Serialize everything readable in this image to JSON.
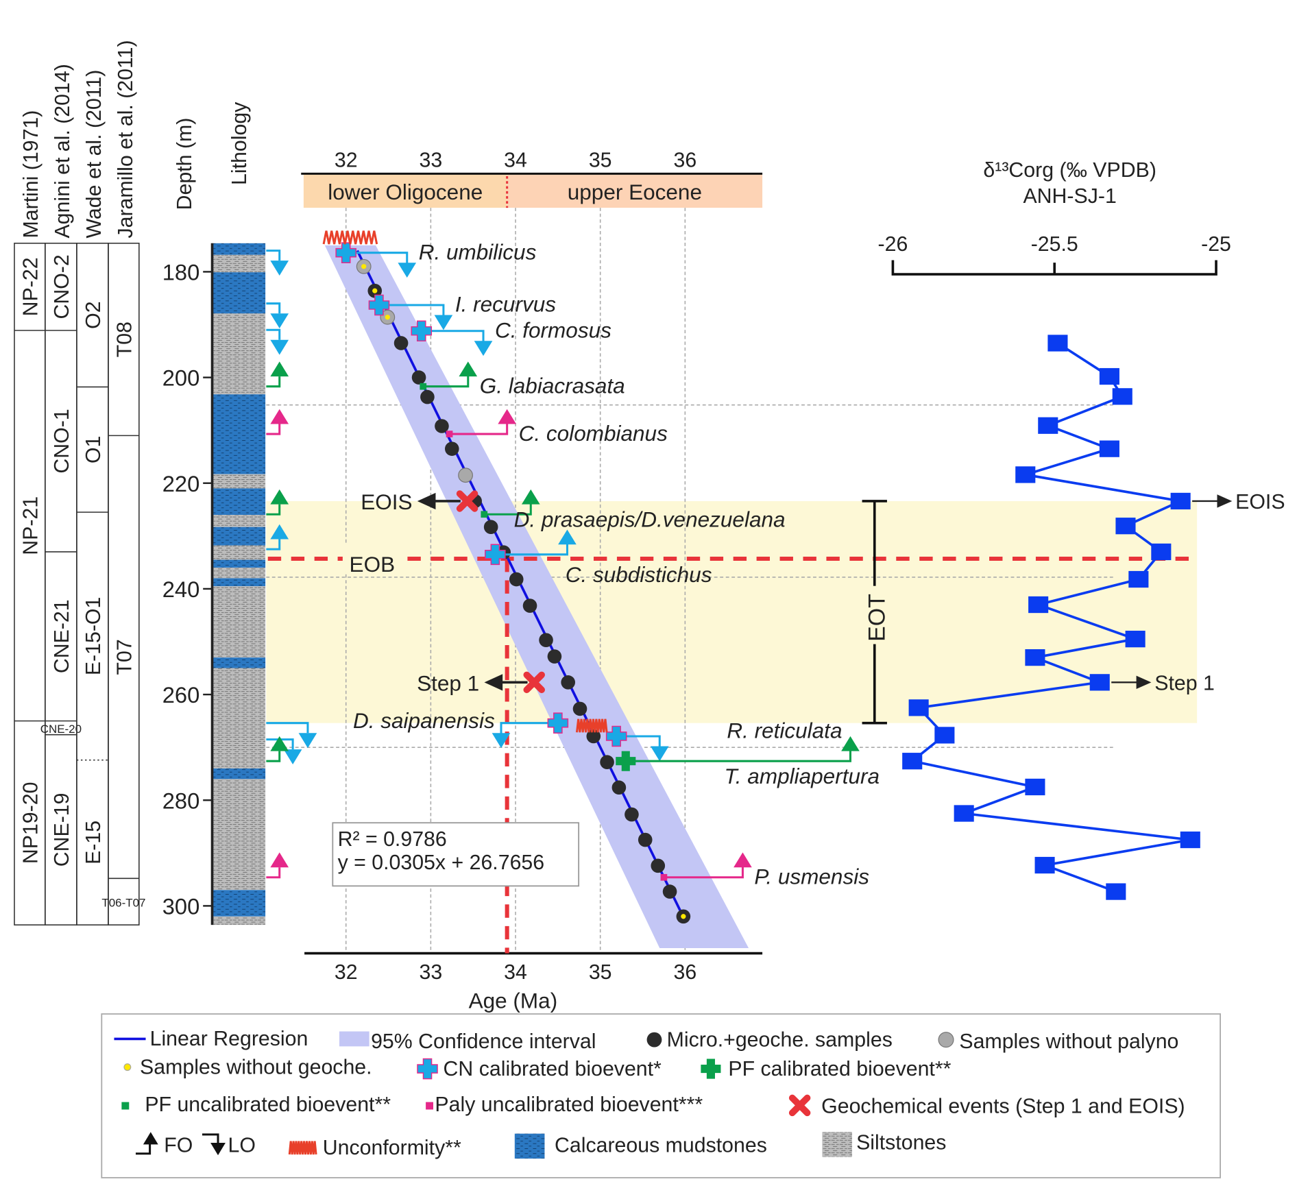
{
  "headers": {
    "martini": "Martini (1971)",
    "agnini": "Agnini et al. (2014)",
    "wade": "Wade et al. (2011)",
    "jaramillo": "Jaramillo et al. (2011)",
    "depth": "Depth (m)",
    "lithology": "Lithology"
  },
  "chart_data": {
    "type": "scatter",
    "xlabel": "Age (Ma)",
    "ylabel": "Depth (m)",
    "xlim": [
      31.5,
      37
    ],
    "ylim": [
      305,
      172
    ],
    "x_ticks": [
      32,
      33,
      34,
      35,
      36
    ],
    "y_ticks": [
      180,
      200,
      220,
      240,
      260,
      280,
      300
    ],
    "grid": true,
    "epochs": [
      {
        "label": "lower Oligocene",
        "from": 31.5,
        "to": 33.9,
        "color": "#fcd8ad"
      },
      {
        "label": "upper Eocene",
        "from": 33.9,
        "to": 37.0,
        "color": "#fdd3b5"
      }
    ],
    "regression": {
      "label": "R² = 0.9786",
      "equation": "y = 0.0305x + 26.7656",
      "slope": 0.0305,
      "intercept": 26.7656,
      "depth_range": [
        176,
        302
      ]
    },
    "confidence_band": {
      "top_depth": 175,
      "bottom_depth": 308,
      "top_ages": [
        31.75,
        32.35
      ],
      "bottom_ages": [
        35.7,
        36.75
      ]
    },
    "samples": [
      {
        "age": 32.21,
        "depth": 179.0,
        "kind": "no-palyno",
        "no_geoche": true
      },
      {
        "age": 32.34,
        "depth": 183.6,
        "kind": "micro-geoche",
        "no_geoche": true
      },
      {
        "age": 32.49,
        "depth": 188.6,
        "kind": "no-palyno",
        "no_geoche": true
      },
      {
        "age": 32.65,
        "depth": 193.5,
        "kind": "micro-geoche"
      },
      {
        "age": 32.86,
        "depth": 200.0,
        "kind": "micro-geoche"
      },
      {
        "age": 32.96,
        "depth": 203.7,
        "kind": "micro-geoche"
      },
      {
        "age": 33.13,
        "depth": 209.2,
        "kind": "micro-geoche"
      },
      {
        "age": 33.25,
        "depth": 213.5,
        "kind": "micro-geoche"
      },
      {
        "age": 33.41,
        "depth": 218.5,
        "kind": "no-palyno"
      },
      {
        "age": 33.52,
        "depth": 223.4,
        "kind": "micro-geoche"
      },
      {
        "age": 33.71,
        "depth": 228.3,
        "kind": "micro-geoche"
      },
      {
        "age": 33.86,
        "depth": 233.1,
        "kind": "micro-geoche"
      },
      {
        "age": 34.01,
        "depth": 238.2,
        "kind": "micro-geoche"
      },
      {
        "age": 34.17,
        "depth": 243.2,
        "kind": "micro-geoche"
      },
      {
        "age": 34.36,
        "depth": 249.7,
        "kind": "micro-geoche"
      },
      {
        "age": 34.46,
        "depth": 252.8,
        "kind": "micro-geoche"
      },
      {
        "age": 34.62,
        "depth": 257.7,
        "kind": "micro-geoche"
      },
      {
        "age": 34.76,
        "depth": 262.7,
        "kind": "micro-geoche"
      },
      {
        "age": 34.92,
        "depth": 267.9,
        "kind": "micro-geoche"
      },
      {
        "age": 35.08,
        "depth": 272.8,
        "kind": "micro-geoche"
      },
      {
        "age": 35.22,
        "depth": 277.6,
        "kind": "micro-geoche"
      },
      {
        "age": 35.37,
        "depth": 282.7,
        "kind": "micro-geoche"
      },
      {
        "age": 35.53,
        "depth": 287.5,
        "kind": "micro-geoche"
      },
      {
        "age": 35.68,
        "depth": 292.4,
        "kind": "micro-geoche"
      },
      {
        "age": 35.82,
        "depth": 297.3,
        "kind": "micro-geoche"
      },
      {
        "age": 35.98,
        "depth": 302.0,
        "kind": "micro-geoche",
        "no_geoche": true
      }
    ],
    "bioevents": [
      {
        "label": "R. umbilicus",
        "type": "CN-calibrated",
        "event": "LO",
        "age": 32.0,
        "depth": 176.4,
        "arrow_age": 32.72
      },
      {
        "label": "I. recurvus",
        "type": "CN-calibrated",
        "event": "LO",
        "age": 32.39,
        "depth": 186.3,
        "arrow_age": 33.15
      },
      {
        "label": "C. formosus",
        "type": "CN-calibrated",
        "event": "LO",
        "age": 32.89,
        "depth": 191.2,
        "arrow_age": 33.62
      },
      {
        "label": "G. labiacrasata",
        "type": "PF-uncalibrated",
        "event": "FO",
        "age": 32.91,
        "depth": 201.7,
        "arrow_age": 33.44
      },
      {
        "label": "C. colombianus",
        "type": "Paly-uncalibrated",
        "event": "FO",
        "age": 33.22,
        "depth": 210.7,
        "arrow_age": 33.9
      },
      {
        "label": "D. prasaepis/D.venezuelana",
        "type": "PF-uncalibrated",
        "event": "FO",
        "age": 33.63,
        "depth": 225.9,
        "arrow_age": 34.18
      },
      {
        "label": "C. subdistichus",
        "type": "CN-calibrated",
        "event": "FO",
        "age": 33.76,
        "depth": 233.5,
        "arrow_age": 34.61
      },
      {
        "label": "D. saipanensis",
        "type": "CN-calibrated",
        "event": "LO",
        "age": 34.5,
        "depth": 265.4,
        "arrow_age": 33.83
      },
      {
        "label": "R. reticulata",
        "type": "CN-calibrated",
        "event": "LO",
        "age": 35.19,
        "depth": 267.9,
        "arrow_age": 35.7
      },
      {
        "label": "T. ampliapertura",
        "type": "PF-calibrated",
        "event": "FO",
        "age": 35.3,
        "depth": 272.6,
        "arrow_age": 37.95
      },
      {
        "label": "P. usmensis",
        "type": "Paly-uncalibrated",
        "event": "FO",
        "age": 35.75,
        "depth": 294.6,
        "arrow_age": 36.68
      }
    ],
    "geochemical_events": [
      {
        "label": "EOIS",
        "age": 33.43,
        "depth": 223.4
      },
      {
        "label": "Step 1",
        "age": 34.22,
        "depth": 257.7
      }
    ],
    "unconformities": [
      {
        "age": 32.05,
        "depth": 173.5
      },
      {
        "age": 34.9,
        "depth": 265.9
      }
    ],
    "eob": {
      "label": "EOB",
      "depth": 234.3,
      "age": 33.9
    },
    "eot": {
      "label": "EOT",
      "from_depth": 223.4,
      "to_depth": 265.4
    },
    "reference_depths": [
      205.2,
      237.8,
      270.0
    ],
    "d13c": {
      "title": "δ¹³Corg (‰ VPDB)",
      "subtitle": "ANH-SJ-1",
      "xlim": [
        -26,
        -25
      ],
      "x_ticks": [
        "-26",
        "-25.5",
        "-25"
      ],
      "color": "#0a3cf0",
      "points": [
        {
          "depth": 193.5,
          "value": -25.49
        },
        {
          "depth": 199.8,
          "value": -25.33
        },
        {
          "depth": 203.6,
          "value": -25.29
        },
        {
          "depth": 209.1,
          "value": -25.52
        },
        {
          "depth": 213.5,
          "value": -25.33
        },
        {
          "depth": 218.4,
          "value": -25.59
        },
        {
          "depth": 223.4,
          "value": -25.11
        },
        {
          "depth": 228.1,
          "value": -25.28
        },
        {
          "depth": 233.0,
          "value": -25.17
        },
        {
          "depth": 238.2,
          "value": -25.24
        },
        {
          "depth": 243.0,
          "value": -25.55
        },
        {
          "depth": 249.5,
          "value": -25.25
        },
        {
          "depth": 253.0,
          "value": -25.56
        },
        {
          "depth": 257.7,
          "value": -25.36
        },
        {
          "depth": 262.5,
          "value": -25.92
        },
        {
          "depth": 267.7,
          "value": -25.84
        },
        {
          "depth": 272.6,
          "value": -25.94
        },
        {
          "depth": 277.5,
          "value": -25.56
        },
        {
          "depth": 282.5,
          "value": -25.78
        },
        {
          "depth": 287.5,
          "value": -25.08
        },
        {
          "depth": 292.3,
          "value": -25.53
        },
        {
          "depth": 297.3,
          "value": -25.31
        }
      ],
      "annotations": [
        {
          "label": "EOIS",
          "depth": 223.4,
          "value": -25.11
        },
        {
          "label": "Step 1",
          "depth": 257.7,
          "value": -25.36
        }
      ]
    },
    "zones": {
      "martini": [
        {
          "label": "NP-22",
          "from": 174.6,
          "to": 191.1
        },
        {
          "label": "NP-21",
          "from": 191.1,
          "to": 265.0
        },
        {
          "label": "NP19-20",
          "from": 265.0,
          "to": 303.6
        }
      ],
      "agnini": [
        {
          "label": "CNO-2",
          "from": 174.6,
          "to": 191.1
        },
        {
          "label": "CNO-1",
          "from": 191.1,
          "to": 233.0
        },
        {
          "label": "CNE-21",
          "from": 233.0,
          "to": 265.0
        },
        {
          "label": "CNE-20",
          "from": 265.0,
          "to": 267.6
        },
        {
          "label": "CNE-19",
          "from": 267.6,
          "to": 303.6
        }
      ],
      "wade": [
        {
          "label": "O2",
          "from": 174.6,
          "to": 201.8
        },
        {
          "label": "O1",
          "from": 201.8,
          "to": 225.5
        },
        {
          "label": "E-15-O1",
          "from": 225.5,
          "to": 272.4,
          "dotted_bottom": true
        },
        {
          "label": "E-15",
          "from": 272.4,
          "to": 303.6
        }
      ],
      "jaramillo": [
        {
          "label": "T08",
          "from": 174.6,
          "to": 211.0
        },
        {
          "label": "T07",
          "from": 211.0,
          "to": 294.8
        },
        {
          "label": "T06-T07",
          "from": 294.8,
          "to": 303.6
        }
      ]
    },
    "lithology": [
      {
        "type": "mudstone",
        "from": 174.6,
        "to": 176.8
      },
      {
        "type": "siltstone",
        "from": 176.8,
        "to": 180.1
      },
      {
        "type": "mudstone",
        "from": 180.1,
        "to": 187.9
      },
      {
        "type": "siltstone",
        "from": 187.9,
        "to": 203.2
      },
      {
        "type": "mudstone",
        "from": 203.2,
        "to": 218.3
      },
      {
        "type": "siltstone",
        "from": 218.3,
        "to": 221.0
      },
      {
        "type": "mudstone",
        "from": 221.0,
        "to": 226.0
      },
      {
        "type": "siltstone",
        "from": 226.0,
        "to": 228.3
      },
      {
        "type": "mudstone",
        "from": 228.3,
        "to": 231.8
      },
      {
        "type": "siltstone",
        "from": 231.8,
        "to": 234.5
      },
      {
        "type": "mudstone",
        "from": 234.5,
        "to": 236.0
      },
      {
        "type": "siltstone",
        "from": 236.0,
        "to": 238.0
      },
      {
        "type": "mudstone",
        "from": 238.0,
        "to": 239.5
      },
      {
        "type": "siltstone",
        "from": 239.5,
        "to": 253.0
      },
      {
        "type": "mudstone",
        "from": 253.0,
        "to": 255.0
      },
      {
        "type": "siltstone",
        "from": 255.0,
        "to": 274.0
      },
      {
        "type": "mudstone",
        "from": 274.0,
        "to": 276.0
      },
      {
        "type": "siltstone",
        "from": 276.0,
        "to": 297.0
      },
      {
        "type": "mudstone",
        "from": 297.0,
        "to": 302.0
      },
      {
        "type": "siltstone",
        "from": 302.0,
        "to": 303.6
      }
    ],
    "column_marks": [
      {
        "depth": 176,
        "event": "LO",
        "color": "#19a9e5"
      },
      {
        "depth": 186,
        "event": "LO",
        "color": "#19a9e5"
      },
      {
        "depth": 191,
        "event": "LO",
        "color": "#19a9e5"
      },
      {
        "depth": 201.7,
        "event": "FO",
        "color": "#0aa04b"
      },
      {
        "depth": 210.7,
        "event": "FO",
        "color": "#e5288a"
      },
      {
        "depth": 225.9,
        "event": "FO",
        "color": "#0aa04b"
      },
      {
        "depth": 232.5,
        "event": "FO",
        "color": "#19a9e5"
      },
      {
        "depth": 265.4,
        "event": "LO",
        "color": "#19a9e5"
      },
      {
        "depth": 268.5,
        "event": "LO",
        "color": "#19a9e5"
      },
      {
        "depth": 272.6,
        "event": "FO",
        "color": "#0aa04b"
      },
      {
        "depth": 294.6,
        "event": "FO",
        "color": "#e5288a"
      }
    ],
    "legend": {
      "items": [
        "Linear Regresion",
        "95% Confidence interval",
        "Micro.+geoche. samples",
        "Samples without palyno",
        "Samples without geoche.",
        "CN calibrated bioevent*",
        "PF calibrated bioevent**",
        "PF uncalibrated bioevent**",
        "Paly uncalibrated bioevent***",
        "Geochemical events (Step 1 and EOIS)",
        "FO",
        "LO",
        "Unconformity**",
        "Calcareous mudstones",
        "Siltstones"
      ]
    },
    "colors": {
      "cn": "#19a9e5",
      "pf": "#0aa04b",
      "paly": "#e5288a",
      "geochem": "#e8343a",
      "regression": "#1010e0",
      "band": "#c3c6f5",
      "eot_band": "#fdf8d6",
      "mudstone": "#2b78c2",
      "siltstone": "#b8b8b8"
    }
  }
}
